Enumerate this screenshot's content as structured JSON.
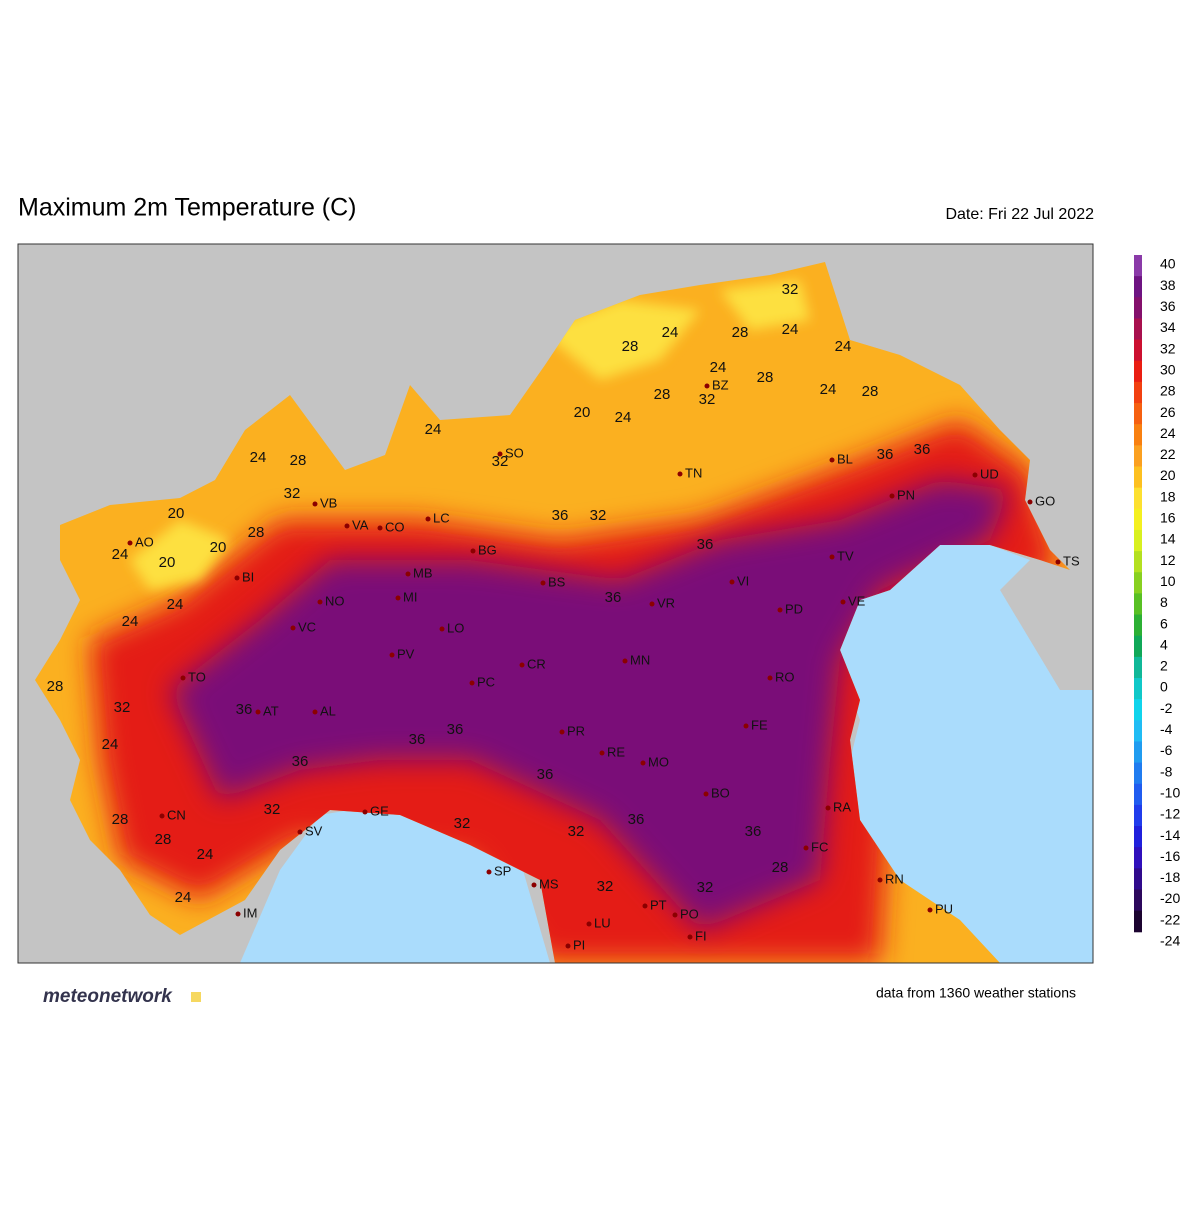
{
  "header": {
    "title": "Maximum 2m Temperature (C)",
    "date": "Date: Fri 22 Jul 2022"
  },
  "colorbar": {
    "ticks": [
      40,
      38,
      36,
      34,
      32,
      30,
      28,
      26,
      24,
      22,
      20,
      18,
      16,
      14,
      12,
      10,
      8,
      6,
      4,
      2,
      0,
      -2,
      -4,
      -6,
      -8,
      -10,
      -12,
      -14,
      -16,
      -18,
      -20,
      -22,
      -24
    ],
    "colors": [
      "#8a3aa8",
      "#6e1482",
      "#84106c",
      "#a8104e",
      "#cc1030",
      "#ea1e12",
      "#f24010",
      "#f66010",
      "#f98010",
      "#fba020",
      "#fdc020",
      "#fde030",
      "#f4f020",
      "#d8f020",
      "#b4e020",
      "#88d020",
      "#58c024",
      "#2cb034",
      "#10a858",
      "#10b898",
      "#10c8c8",
      "#10d4ec",
      "#20bcf4",
      "#209cf0",
      "#207cf0",
      "#205cf0",
      "#203cec",
      "#2020dc",
      "#3010bc",
      "#300a8c",
      "#2c085c",
      "#1c0430"
    ]
  },
  "cities": [
    "AO",
    "BI",
    "NO",
    "VA",
    "CO",
    "LC",
    "BG",
    "MB",
    "MI",
    "LO",
    "PV",
    "VB",
    "TO",
    "VC",
    "AT",
    "AL",
    "CN",
    "SV",
    "GE",
    "IM",
    "SO",
    "BS",
    "CR",
    "PC",
    "TN",
    "BZ",
    "BL",
    "UD",
    "PN",
    "GO",
    "TS",
    "TV",
    "VE",
    "VI",
    "PD",
    "VR",
    "MN",
    "RO",
    "FE",
    "PR",
    "RE",
    "MO",
    "BO",
    "RA",
    "FC",
    "RN",
    "PU",
    "SP",
    "MS",
    "LU",
    "PI",
    "PT",
    "PO",
    "FI"
  ],
  "contour_labels": [
    "20",
    "24",
    "20",
    "28",
    "24",
    "28",
    "32",
    "28",
    "24",
    "28",
    "24",
    "32",
    "36",
    "24",
    "36",
    "36",
    "28",
    "32",
    "24",
    "28",
    "24",
    "32",
    "36",
    "32",
    "36",
    "32",
    "24",
    "20",
    "24",
    "28",
    "20",
    "24",
    "28",
    "32",
    "24",
    "24",
    "28",
    "28",
    "32",
    "24",
    "36",
    "32",
    "36",
    "36",
    "32",
    "28",
    "24",
    "32",
    "36",
    "36",
    "36",
    "36"
  ],
  "footer": {
    "logo": "meteonetwork",
    "note": "data from 1360 weather stations"
  }
}
